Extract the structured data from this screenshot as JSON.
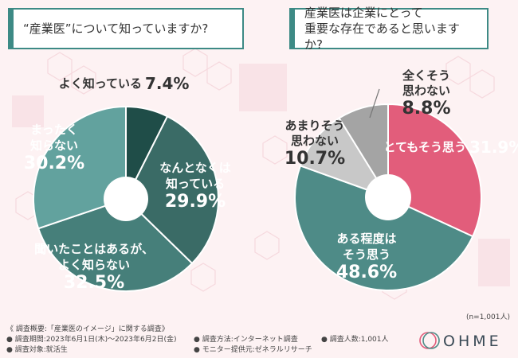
{
  "header": {
    "q1": "“産業医”について知っていますか?",
    "q2_line1": "産業医は企業にとって",
    "q2_line2": "重要な存在であると思いますか?"
  },
  "note": "(n=1,001人)",
  "footer": {
    "title": "《 調査概要:「産業医のイメージ」に関する調査》",
    "period": "● 調査期間:2023年6月1日(木)～2023年6月2日(金)",
    "target": "● 調査対象:就活生",
    "method": "● 調査方法:インターネット調査",
    "provider": "● モニター提供元:ゼネラルリサーチ",
    "count": "● 調査人数:1,001人"
  },
  "logo": {
    "text": "OHME"
  },
  "chart_data": [
    {
      "type": "pie",
      "title": "“産業医”について知っていますか?",
      "donut": true,
      "slices": [
        {
          "label_lines": [
            "よく知っている"
          ],
          "value": 7.4,
          "value_text": "7.4%",
          "color": "#1f4d48",
          "text_color": "#333333"
        },
        {
          "label_lines": [
            "なんとなくは",
            "知っている"
          ],
          "value": 29.9,
          "value_text": "29.9%",
          "color": "#3a6b66",
          "text_color": "#ffffff"
        },
        {
          "label_lines": [
            "聞いたことはあるが、",
            "よく知らない"
          ],
          "value": 32.5,
          "value_text": "32.5%",
          "color": "#467f7a",
          "text_color": "#ffffff"
        },
        {
          "label_lines": [
            "まったく",
            "知らない"
          ],
          "value": 30.2,
          "value_text": "30.2%",
          "color": "#62a29e",
          "text_color": "#ffffff"
        }
      ]
    },
    {
      "type": "pie",
      "title": "産業医は企業にとって重要な存在であると思いますか?",
      "donut": true,
      "slices": [
        {
          "label_lines": [
            "とてもそう思う"
          ],
          "value": 31.9,
          "value_text": "31.9%",
          "color": "#e25d7b",
          "text_color": "#ffffff"
        },
        {
          "label_lines": [
            "ある程度は",
            "そう思う"
          ],
          "value": 48.6,
          "value_text": "48.6%",
          "color": "#4e8b87",
          "text_color": "#ffffff"
        },
        {
          "label_lines": [
            "あまりそう",
            "思わない"
          ],
          "value": 10.7,
          "value_text": "10.7%",
          "color": "#c8c8c8",
          "text_color": "#333333"
        },
        {
          "label_lines": [
            "全くそう",
            "思わない"
          ],
          "value": 8.8,
          "value_text": "8.8%",
          "color": "#a4a4a4",
          "text_color": "#333333"
        }
      ]
    }
  ]
}
